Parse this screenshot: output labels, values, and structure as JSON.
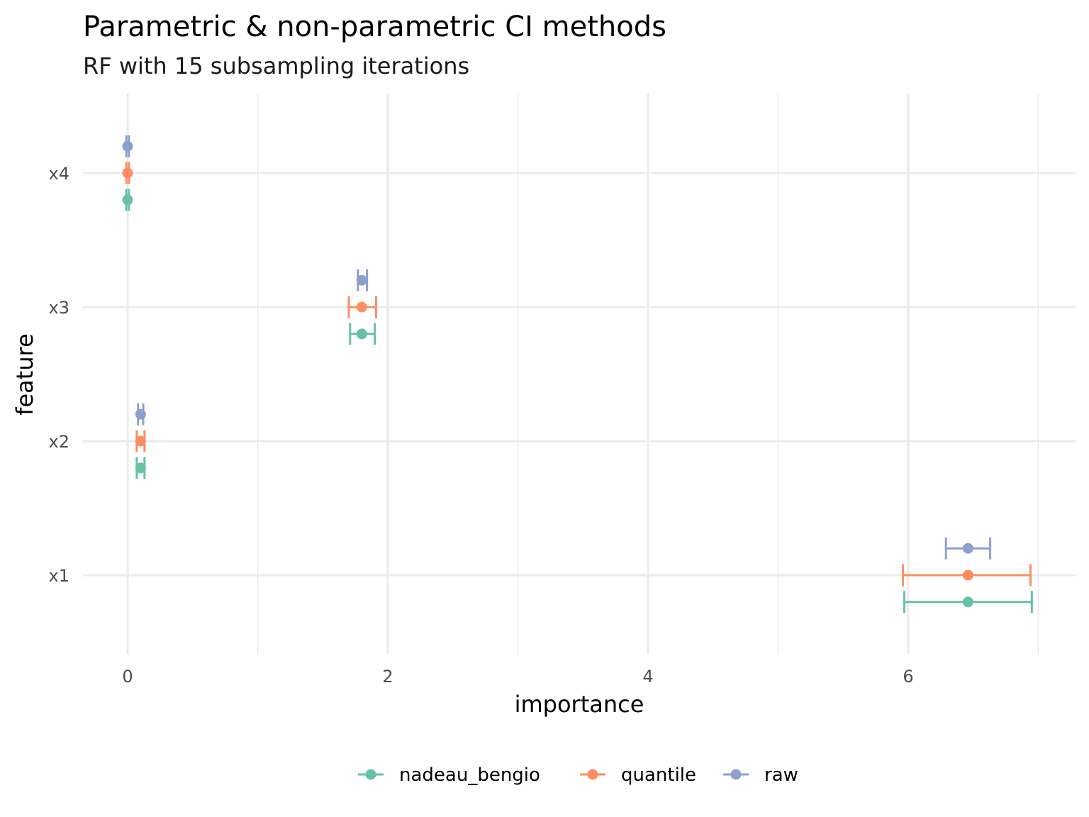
{
  "chart_data": {
    "type": "scatter",
    "title": "Parametric & non-parametric CI methods",
    "subtitle": "RF with 15 subsampling iterations",
    "xlabel": "importance",
    "ylabel": "feature",
    "xlim": [
      -0.3,
      7.3
    ],
    "x_ticks": [
      0,
      2,
      4,
      6
    ],
    "x_tick_labels": [
      "0",
      "2",
      "4",
      "6"
    ],
    "categories": [
      "x1",
      "x2",
      "x3",
      "x4"
    ],
    "grid": true,
    "legend_position": "bottom",
    "series": [
      {
        "name": "nadeau_bengio",
        "color": "#66C2A5",
        "points": [
          {
            "feature": "x1",
            "estimate": 6.46,
            "lower": 5.97,
            "upper": 6.95
          },
          {
            "feature": "x2",
            "estimate": 0.1,
            "lower": 0.07,
            "upper": 0.13
          },
          {
            "feature": "x3",
            "estimate": 1.8,
            "lower": 1.71,
            "upper": 1.9
          },
          {
            "feature": "x4",
            "estimate": 0.0,
            "lower": -0.01,
            "upper": 0.01
          }
        ]
      },
      {
        "name": "quantile",
        "color": "#FC8D62",
        "points": [
          {
            "feature": "x1",
            "estimate": 6.46,
            "lower": 5.96,
            "upper": 6.94
          },
          {
            "feature": "x2",
            "estimate": 0.1,
            "lower": 0.07,
            "upper": 0.13
          },
          {
            "feature": "x3",
            "estimate": 1.8,
            "lower": 1.7,
            "upper": 1.91
          },
          {
            "feature": "x4",
            "estimate": 0.0,
            "lower": -0.01,
            "upper": 0.01
          }
        ]
      },
      {
        "name": "raw",
        "color": "#8DA0CB",
        "points": [
          {
            "feature": "x1",
            "estimate": 6.46,
            "lower": 6.29,
            "upper": 6.63
          },
          {
            "feature": "x2",
            "estimate": 0.1,
            "lower": 0.08,
            "upper": 0.12
          },
          {
            "feature": "x3",
            "estimate": 1.8,
            "lower": 1.77,
            "upper": 1.84
          },
          {
            "feature": "x4",
            "estimate": 0.0,
            "lower": -0.01,
            "upper": 0.01
          }
        ]
      }
    ]
  }
}
